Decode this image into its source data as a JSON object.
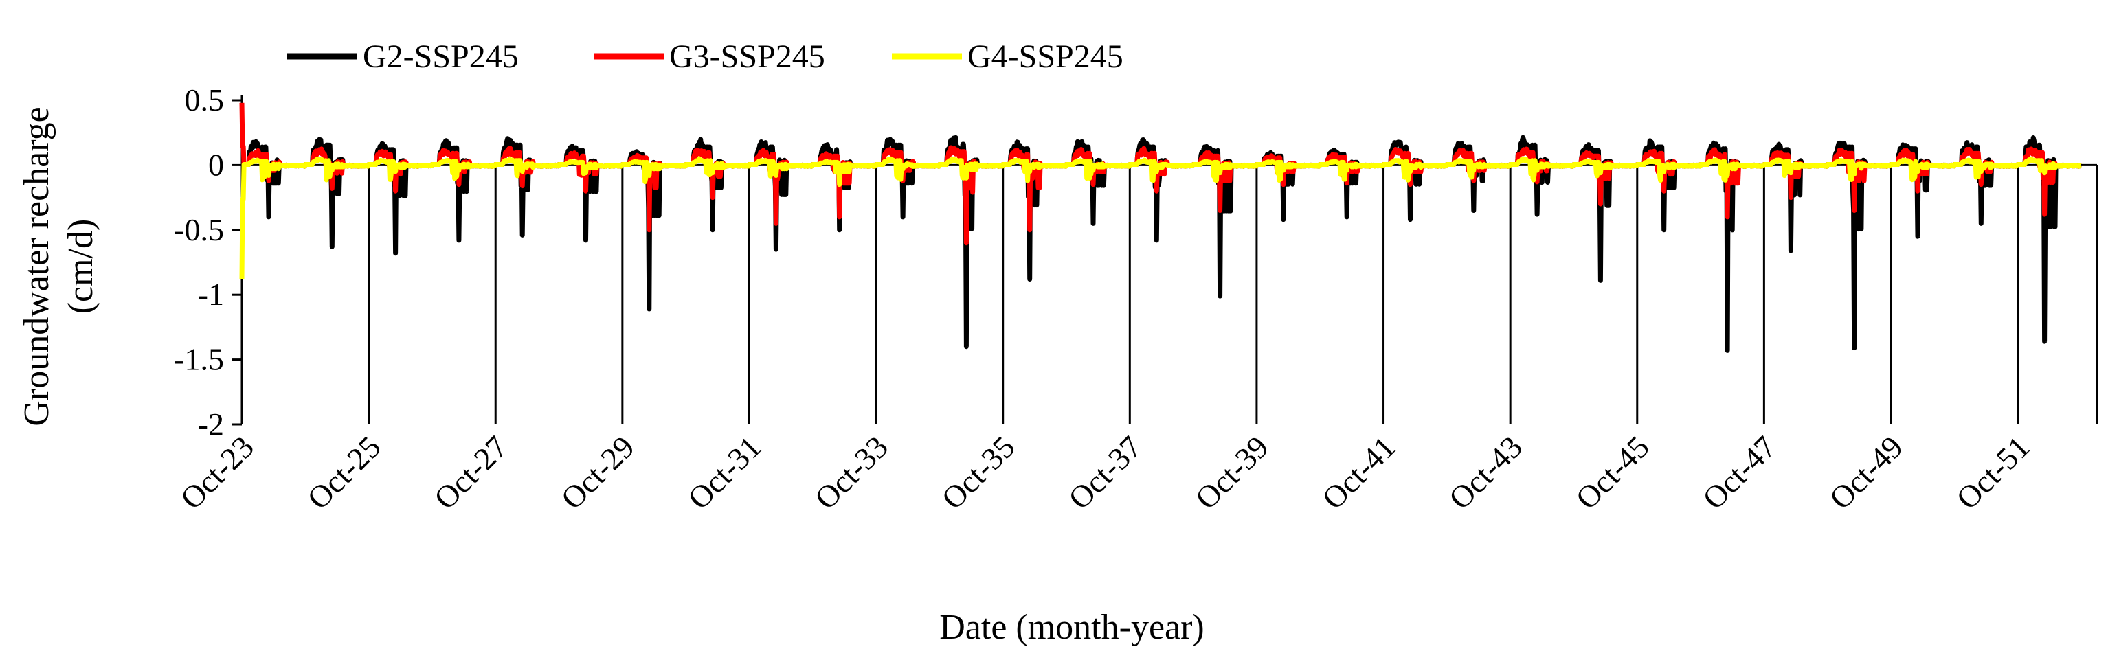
{
  "chart_data": {
    "type": "line",
    "title": "",
    "xlabel": "Date (month-year)",
    "ylabel_line1": "Groundwater recharge",
    "ylabel_line2": "(cm/d)",
    "ylim": [
      -2,
      0.5
    ],
    "yticks": [
      0.5,
      0,
      -0.5,
      -1,
      -1.5,
      -2
    ],
    "ytick_labels": [
      "0.5",
      "0",
      "-0.5",
      "-1",
      "-1.5",
      "-2"
    ],
    "x_start_year": 2023.75,
    "x_end_year": 2053.0,
    "xtick_labels": [
      "Oct-23",
      "Oct-25",
      "Oct-27",
      "Oct-29",
      "Oct-31",
      "Oct-33",
      "Oct-35",
      "Oct-37",
      "Oct-39",
      "Oct-41",
      "Oct-43",
      "Oct-45",
      "Oct-47",
      "Oct-49",
      "Oct-51"
    ],
    "legend_position": "top",
    "series": [
      {
        "name": "G2-SSP245",
        "color": "#000000",
        "annual_peak": [
          0.2,
          0.22,
          0.17,
          0.19,
          0.22,
          0.16,
          0.12,
          0.2,
          0.2,
          0.17,
          0.22,
          0.23,
          0.18,
          0.2,
          0.2,
          0.16,
          0.1,
          0.12,
          0.2,
          0.2,
          0.22,
          0.16,
          0.2,
          0.18,
          0.17,
          0.2,
          0.18,
          0.2,
          0.22
        ],
        "annual_min": [
          -0.4,
          -0.63,
          -0.68,
          -0.58,
          -0.54,
          -0.58,
          -1.11,
          -0.5,
          -0.65,
          -0.5,
          -0.4,
          -1.4,
          -0.88,
          -0.45,
          -0.58,
          -1.01,
          -0.42,
          -0.4,
          -0.42,
          -0.35,
          -0.38,
          -0.89,
          -0.5,
          -1.43,
          -0.66,
          -1.41,
          -0.55,
          -0.45,
          -1.36
        ]
      },
      {
        "name": "G3-SSP245",
        "color": "#ff0000",
        "start_value": 0.48,
        "annual_peak": [
          0.12,
          0.14,
          0.12,
          0.13,
          0.14,
          0.1,
          0.08,
          0.14,
          0.12,
          0.1,
          0.14,
          0.15,
          0.12,
          0.13,
          0.13,
          0.1,
          0.08,
          0.09,
          0.13,
          0.13,
          0.14,
          0.1,
          0.13,
          0.12,
          0.11,
          0.13,
          0.12,
          0.13,
          0.14
        ],
        "annual_min": [
          -0.12,
          -0.18,
          -0.2,
          -0.15,
          -0.16,
          -0.2,
          -0.5,
          -0.25,
          -0.45,
          -0.4,
          -0.12,
          -0.6,
          -0.5,
          -0.15,
          -0.2,
          -0.35,
          -0.15,
          -0.14,
          -0.15,
          -0.12,
          -0.13,
          -0.3,
          -0.2,
          -0.4,
          -0.25,
          -0.35,
          -0.2,
          -0.15,
          -0.38
        ]
      },
      {
        "name": "G4-SSP245",
        "color": "#ffff00",
        "start_value": -0.88,
        "annual_peak": [
          0.04,
          0.05,
          0.04,
          0.04,
          0.05,
          0.03,
          0.03,
          0.05,
          0.04,
          0.03,
          0.05,
          0.05,
          0.04,
          0.04,
          0.04,
          0.03,
          0.03,
          0.03,
          0.04,
          0.04,
          0.05,
          0.03,
          0.04,
          0.04,
          0.04,
          0.04,
          0.04,
          0.04,
          0.05
        ],
        "annual_min": [
          -0.08,
          -0.04,
          -0.05,
          -0.04,
          -0.05,
          -0.06,
          -0.08,
          -0.06,
          -0.08,
          -0.15,
          -0.03,
          -0.1,
          -0.05,
          -0.04,
          -0.05,
          -0.06,
          -0.04,
          -0.04,
          -0.05,
          -0.04,
          -0.04,
          -0.06,
          -0.05,
          -0.08,
          -0.06,
          -0.07,
          -0.05,
          -0.05,
          -0.06
        ]
      }
    ]
  }
}
